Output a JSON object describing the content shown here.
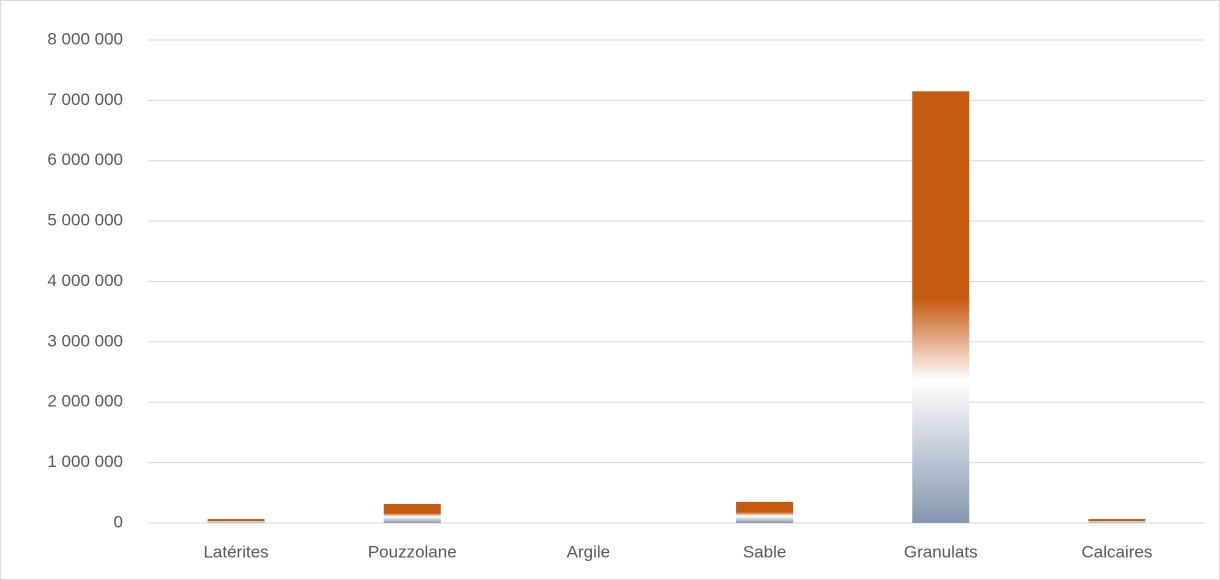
{
  "chart_data": {
    "type": "bar",
    "categories": [
      "Latérites",
      "Pouzzolane",
      "Argile",
      "Sable",
      "Granulats",
      "Calcaires"
    ],
    "values": [
      65000,
      315000,
      0,
      350000,
      7150000,
      65000
    ],
    "color": "#c55a11",
    "gradient": [
      "#c55a11",
      "#ffffff",
      "#8497b0"
    ],
    "ylim": [
      0,
      8000000
    ],
    "yticks": [
      0,
      {
        "value": 1000000,
        "label": "1 000 000"
      },
      {
        "value": 2000000,
        "label": "2 000 000"
      },
      {
        "value": 3000000,
        "label": "3 000 000"
      },
      {
        "value": 4000000,
        "label": "4 000 000"
      },
      {
        "value": 5000000,
        "label": "5 000 000"
      },
      {
        "value": 6000000,
        "label": "6 000 000"
      },
      {
        "value": 7000000,
        "label": "7 000 000"
      },
      {
        "value": 8000000,
        "label": "8 000 000"
      }
    ],
    "grid": true
  }
}
